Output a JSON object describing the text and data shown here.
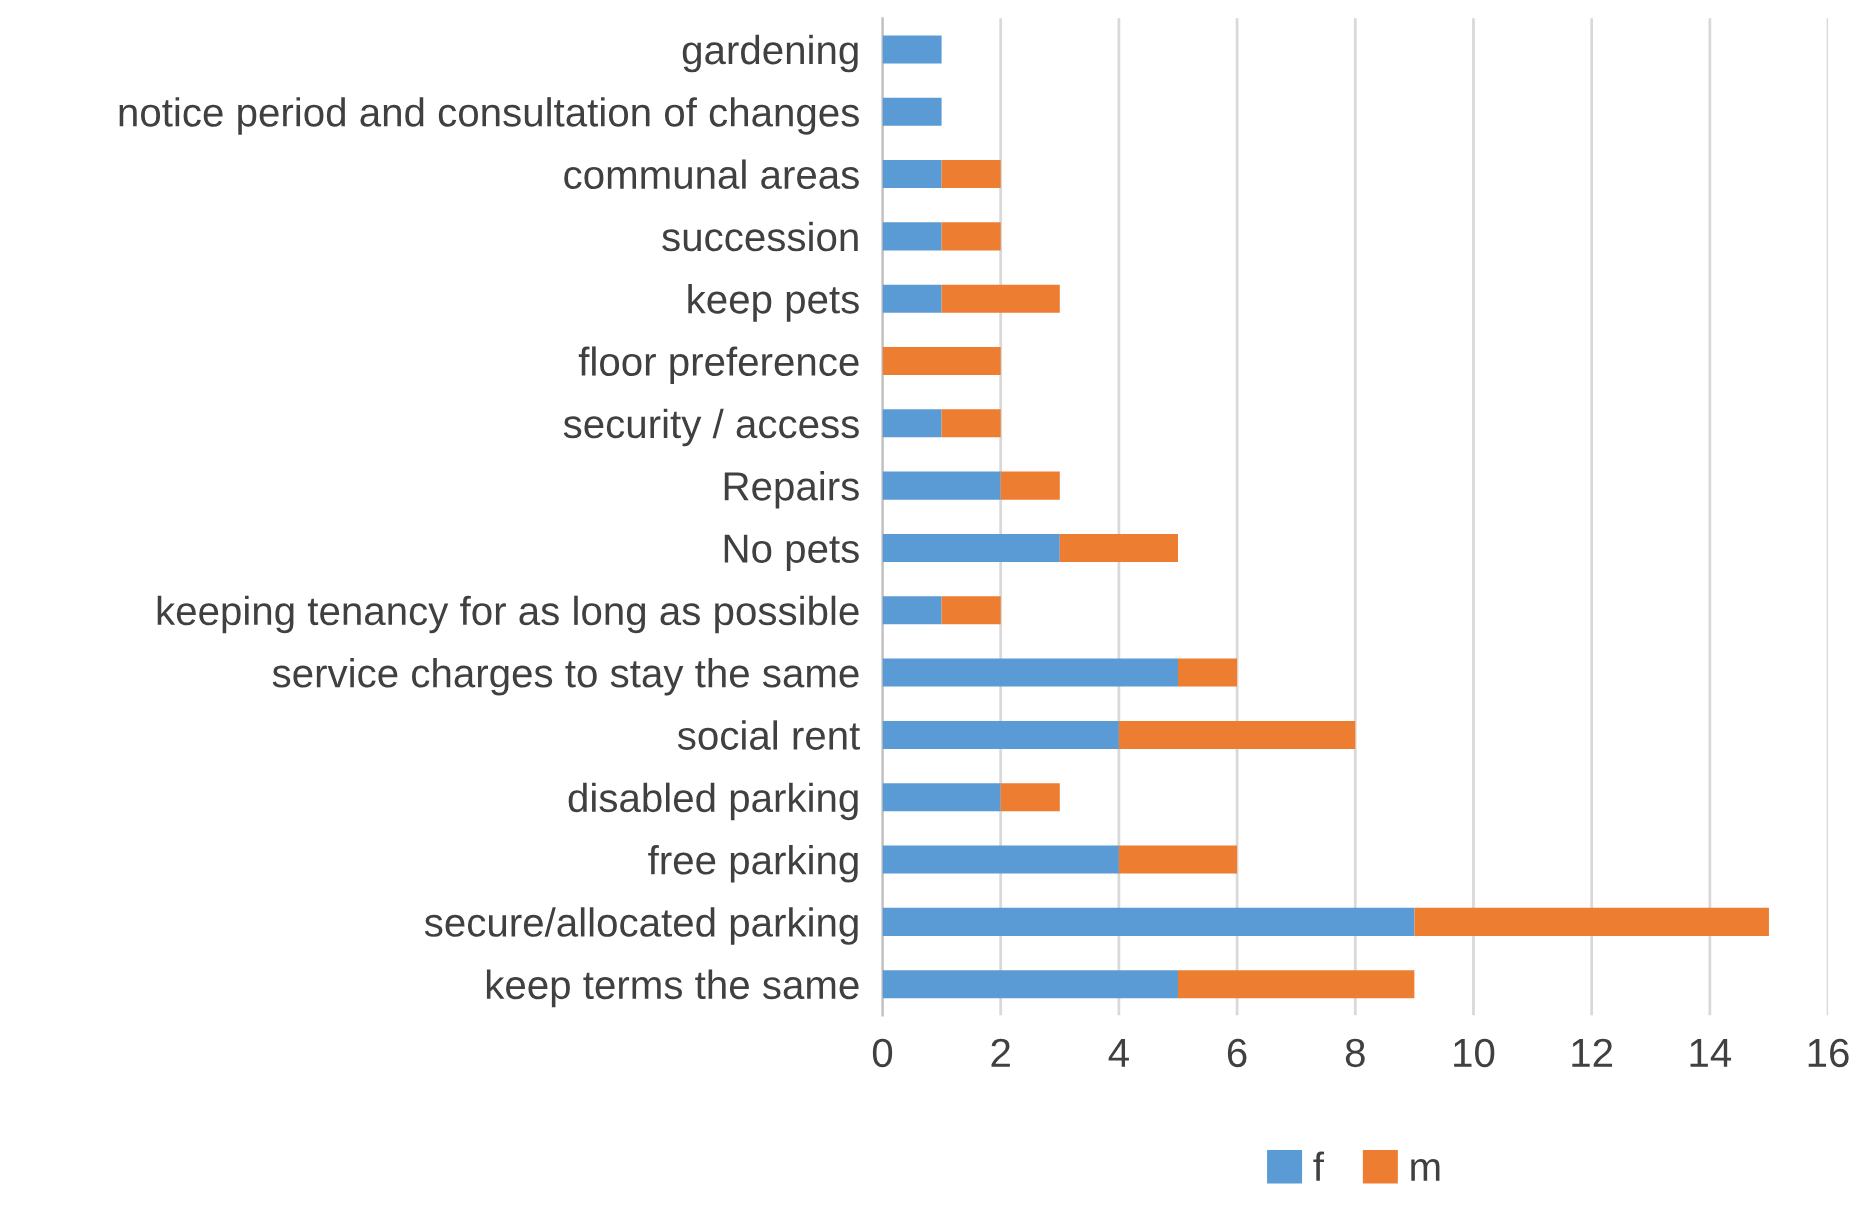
{
  "chart_data": {
    "type": "bar",
    "orientation": "horizontal",
    "stacked": true,
    "categories": [
      "gardening",
      "notice period and consultation of changes",
      "communal areas",
      "succession",
      "keep pets",
      "floor preference",
      "security / access",
      "Repairs",
      "No pets",
      "keeping tenancy for as long as possible",
      "service charges to stay the same",
      "social rent",
      "disabled parking",
      "free parking",
      "secure/allocated parking",
      "keep terms the same"
    ],
    "series": [
      {
        "name": "f",
        "color": "#5b9bd5",
        "values": [
          1,
          1,
          1,
          1,
          1,
          0,
          1,
          2,
          3,
          1,
          5,
          4,
          2,
          4,
          9,
          5
        ]
      },
      {
        "name": "m",
        "color": "#ed7d31",
        "values": [
          0,
          0,
          1,
          1,
          2,
          2,
          1,
          1,
          2,
          1,
          1,
          4,
          1,
          2,
          6,
          4
        ]
      }
    ],
    "xlim": [
      0,
      16
    ],
    "xticks": [
      0,
      2,
      4,
      6,
      8,
      10,
      12,
      14,
      16
    ],
    "grid": "x",
    "legend": "bottom"
  }
}
